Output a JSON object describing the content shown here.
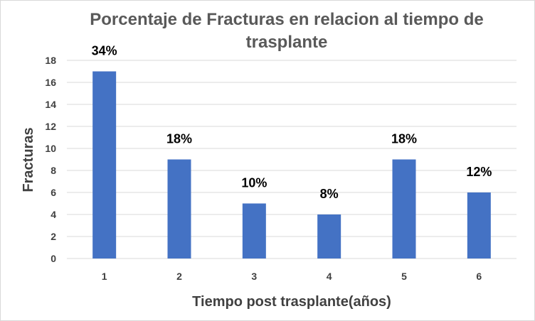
{
  "chart_data": {
    "type": "bar",
    "title_lines": [
      "Porcentaje de Fracturas en relacion al tiempo de",
      "trasplante"
    ],
    "xlabel": "Tiempo post trasplante(años)",
    "ylabel": "Fracturas",
    "categories": [
      "1",
      "2",
      "3",
      "4",
      "5",
      "6"
    ],
    "values": [
      17,
      9,
      5,
      4,
      9,
      6
    ],
    "data_labels": [
      "34%",
      "18%",
      "10%",
      "8%",
      "18%",
      "12%"
    ],
    "ylim": [
      0,
      18
    ],
    "yticks": [
      "0",
      "2",
      "4",
      "6",
      "8",
      "10",
      "12",
      "14",
      "16",
      "18"
    ],
    "grid": true,
    "bar_color": "#4472c4",
    "grid_color": "#d9d9d9"
  }
}
